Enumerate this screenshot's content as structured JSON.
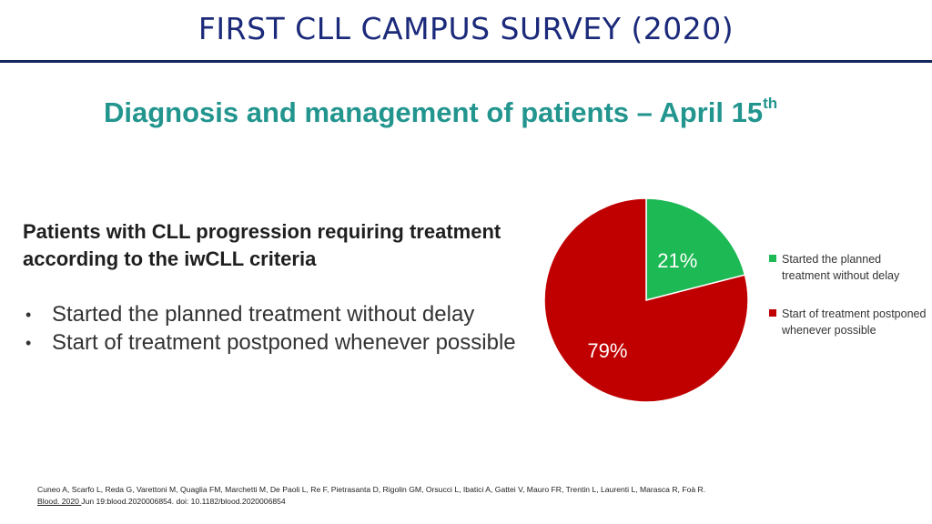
{
  "slide": {
    "title": "FIRST CLL CAMPUS SURVEY (2020)",
    "subtitle": "Diagnosis and management of patients – April 15",
    "subtitle_sup": "th"
  },
  "text_block": {
    "heading": "Patients with CLL progression requiring treatment according to the iwCLL criteria",
    "bullets": [
      "Started the planned treatment without delay",
      "Start of treatment postponed whenever possible"
    ]
  },
  "chart_data": {
    "type": "pie",
    "title": "",
    "categories": [
      "Started the planned treatment without delay",
      "Start of treatment postponed whenever possible"
    ],
    "values": [
      21,
      79
    ],
    "data_labels": [
      "21%",
      "79%"
    ],
    "colors": [
      "#1db954",
      "#c00000"
    ],
    "legend_position": "right"
  },
  "citation": {
    "line1": "Cuneo A, Scarfo L, Reda G, Varettoni M, Quaglia FM, Marchetti M, De Paoli L, Re F, Pietrasanta D, Rigolin GM, Orsucci L, Ibatici A, Gattei V, Mauro FR, Trentin L, Laurenti L, Marasca R, Foà R.",
    "journal": "Blood. 2020 ",
    "line2": "Jun 19:blood.2020006854. doi: 10.1182/blood.2020006854"
  }
}
